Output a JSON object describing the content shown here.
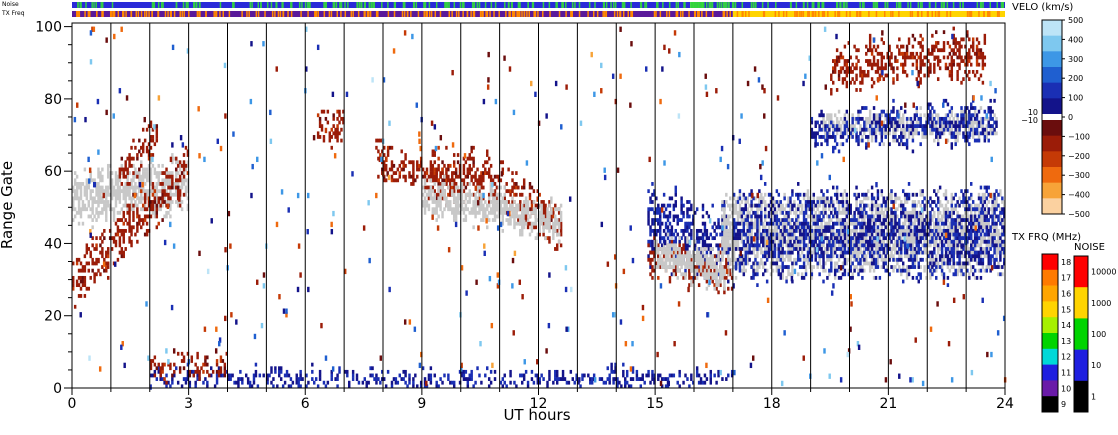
{
  "chart_data": {
    "type": "heatmap",
    "title": "",
    "xlabel": "UT hours",
    "ylabel": "Range Gate",
    "xlim": [
      0,
      24
    ],
    "ylim": [
      0,
      101
    ],
    "x_ticks": [
      "0",
      "3",
      "6",
      "9",
      "12",
      "15",
      "18",
      "21",
      "24"
    ],
    "y_ticks": [
      "0",
      "20",
      "40",
      "60",
      "80",
      "100"
    ],
    "hour_markers": [
      1,
      2,
      3,
      4,
      5,
      6,
      7,
      8,
      9,
      10,
      11,
      12,
      13,
      14,
      15,
      16,
      17,
      18,
      19,
      20,
      21,
      22,
      23
    ],
    "top_strips": [
      {
        "label": "Noise",
        "segments": [
          {
            "from": 0,
            "to": 15.9,
            "color": "#2a2ad8"
          },
          {
            "from": 15.9,
            "to": 16.25,
            "color": "#33dd33"
          },
          {
            "from": 16.25,
            "to": 24,
            "color": "#2a2ad8"
          }
        ],
        "flecks": "#33cc44"
      },
      {
        "label": "TX Freq",
        "segments": [
          {
            "from": 0,
            "to": 17.0,
            "color": "#5a1a9a"
          },
          {
            "from": 17.0,
            "to": 24,
            "color": "#ffd400"
          }
        ],
        "flecks": "#ff8800"
      }
    ],
    "ground_scatter_color": "#c8c8c8",
    "regions": [
      {
        "kind": "ground_scatter",
        "x_start": 0,
        "x_end": 3,
        "center_start": 52,
        "center_end": 56,
        "half_width": 6
      },
      {
        "kind": "velocity",
        "value": -150,
        "x_start": 0,
        "x_end": 3,
        "center_start": 28,
        "center_end": 60,
        "half_width": 6
      },
      {
        "kind": "velocity",
        "value": -150,
        "x_start": 1.2,
        "x_end": 2.2,
        "center_start": 58,
        "center_end": 70,
        "half_width": 5
      },
      {
        "kind": "velocity",
        "value": -150,
        "x_start": 6.3,
        "x_end": 7.0,
        "center_start": 72,
        "center_end": 72,
        "half_width": 4
      },
      {
        "kind": "velocity",
        "value": -150,
        "x_start": 7.8,
        "x_end": 9.8,
        "center_start": 64,
        "center_end": 55,
        "half_width": 5
      },
      {
        "kind": "velocity",
        "value": -150,
        "x_start": 9.2,
        "x_end": 10.8,
        "center_start": 59,
        "center_end": 58,
        "half_width": 6
      },
      {
        "kind": "velocity",
        "value": -150,
        "x_start": 10.8,
        "x_end": 12.6,
        "center_start": 56,
        "center_end": 45,
        "half_width": 6
      },
      {
        "kind": "ground_scatter",
        "x_start": 9.0,
        "x_end": 12.6,
        "center_start": 53,
        "center_end": 45,
        "half_width": 4
      },
      {
        "kind": "velocity",
        "value": 100,
        "x_start": 14.8,
        "x_end": 17.0,
        "center_start": 45,
        "center_end": 38,
        "half_width": 10
      },
      {
        "kind": "velocity",
        "value": -150,
        "x_start": 14.8,
        "x_end": 17.0,
        "center_start": 35,
        "center_end": 32,
        "half_width": 5
      },
      {
        "kind": "ground_scatter",
        "x_start": 15.0,
        "x_end": 16.8,
        "center_start": 36,
        "center_end": 32,
        "half_width": 4
      },
      {
        "kind": "ground_scatter",
        "x_start": 16.7,
        "x_end": 24,
        "center_start": 42,
        "center_end": 42,
        "half_width": 10
      },
      {
        "kind": "velocity",
        "value": 100,
        "x_start": 17.0,
        "x_end": 24,
        "center_start": 42,
        "center_end": 42,
        "half_width": 12
      },
      {
        "kind": "ground_scatter",
        "x_start": 19.3,
        "x_end": 23.8,
        "center_start": 72,
        "center_end": 72,
        "half_width": 3
      },
      {
        "kind": "velocity",
        "value": 100,
        "x_start": 19.0,
        "x_end": 23.8,
        "center_start": 70,
        "center_end": 74,
        "half_width": 5
      },
      {
        "kind": "velocity",
        "value": -150,
        "x_start": 19.5,
        "x_end": 23.5,
        "center_start": 88,
        "center_end": 92,
        "half_width": 6
      },
      {
        "kind": "velocity",
        "value": 100,
        "x_start": 2.0,
        "x_end": 17.0,
        "center_start": 2,
        "center_end": 2,
        "half_width": 2
      },
      {
        "kind": "velocity",
        "value": -150,
        "x_start": 2.0,
        "x_end": 4.0,
        "center_start": 6,
        "center_end": 6,
        "half_width": 3
      }
    ],
    "color_scales": [
      {
        "title": "VELO (km/s)",
        "type": "diverging",
        "ticks": [
          "500",
          "400",
          "300",
          "200",
          "100",
          "0",
          "−100",
          "−200",
          "−300",
          "−400",
          "−500"
        ],
        "inner_labels": [
          "10",
          "−10"
        ],
        "colors": [
          "#bde4f7",
          "#7ec8ef",
          "#3d97e6",
          "#1f5fd0",
          "#1a2fb4",
          "#13138a",
          "#ffffff",
          "#6a0d0d",
          "#9b1c08",
          "#c53a06",
          "#ef6a0e",
          "#f7a338",
          "#fbd1a0"
        ]
      },
      {
        "title": "TX FRQ (MHz)",
        "type": "discrete",
        "ticks": [
          "18",
          "17",
          "16",
          "15",
          "14",
          "13",
          "12",
          "11",
          "10",
          "9"
        ],
        "colors": [
          "#ff0000",
          "#ff7a00",
          "#ffa500",
          "#ffd400",
          "#a6f000",
          "#00d400",
          "#00d8d8",
          "#1f1fe0",
          "#6a1aa8",
          "#000000"
        ]
      },
      {
        "title": "NOISE",
        "type": "discrete",
        "ticks": [
          "10000",
          "1000",
          "100",
          "10",
          "1"
        ],
        "colors": [
          "#ff0000",
          "#ffd400",
          "#00d400",
          "#1f1fe0",
          "#000000"
        ]
      }
    ]
  }
}
